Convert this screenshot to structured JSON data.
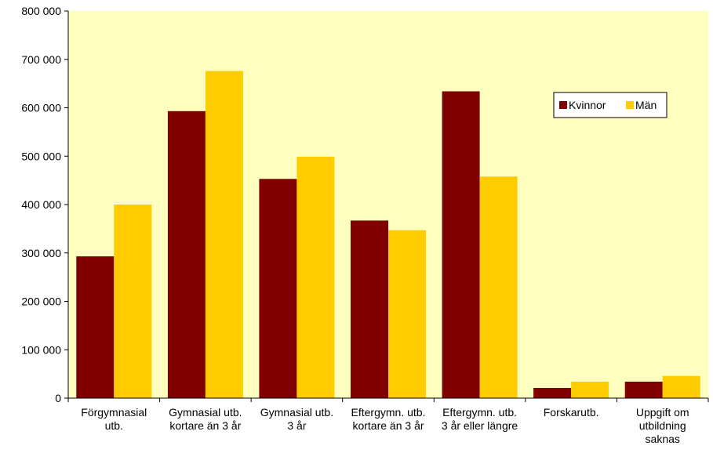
{
  "chart_data": {
    "type": "bar",
    "categories": [
      [
        "Förgymnasial",
        "utb."
      ],
      [
        "Gymnasial utb.",
        "kortare än 3 år"
      ],
      [
        "Gymnasial utb.",
        "3 år"
      ],
      [
        "Eftergymn. utb.",
        "kortare än 3 år"
      ],
      [
        "Eftergymn. utb.",
        "3 år eller längre"
      ],
      [
        "Forskarutb."
      ],
      [
        "Uppgift om",
        "utbildning",
        "saknas"
      ]
    ],
    "series": [
      {
        "name": "Kvinnor",
        "color": "#800000",
        "values": [
          293000,
          593000,
          453000,
          367000,
          634000,
          21000,
          34000
        ]
      },
      {
        "name": "Män",
        "color": "#ffcc00",
        "values": [
          400000,
          676000,
          499000,
          347000,
          458000,
          34000,
          46000
        ]
      }
    ],
    "ylim": [
      0,
      800000
    ],
    "yticks": [
      0,
      100000,
      200000,
      300000,
      400000,
      500000,
      600000,
      700000,
      800000
    ],
    "ytick_labels": [
      "0",
      "100 000",
      "200 000",
      "300 000",
      "400 000",
      "500 000",
      "600 000",
      "700 000",
      "800 000"
    ],
    "grid": false,
    "plot_background": "#ffffc0",
    "legend_position": "top-right"
  }
}
